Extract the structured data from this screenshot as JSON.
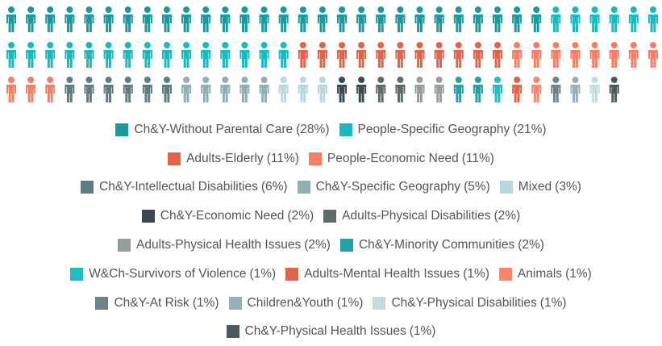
{
  "chart_data": {
    "type": "pictogram",
    "categories": [
      "Ch&Y-Without Parental Care",
      "People-Specific Geography",
      "Adults-Elderly",
      "People-Economic Need",
      "Ch&Y-Intellectual Disabilities",
      "Ch&Y-Specific Geography",
      "Mixed",
      "Ch&Y-Economic Need",
      "Adults-Physical Disabilities",
      "Adults-Physical Health Issues",
      "Ch&Y-Minority Communities",
      "W&Ch-Survivors of Violence",
      "Adults-Mental Health Issues",
      "Animals",
      "Ch&Y-At Risk",
      "Children&Youth",
      "Ch&Y-Physical Disabilities",
      "Ch&Y-Physical Health Issues"
    ],
    "values": [
      28,
      21,
      11,
      11,
      6,
      5,
      3,
      2,
      2,
      2,
      2,
      1,
      1,
      1,
      1,
      1,
      1,
      1
    ],
    "value_labels": [
      "(28%)",
      "(21%)",
      "(11%)",
      "(11%)",
      "(6%)",
      "(5%)",
      "(3%)",
      "(2%)",
      "(2%)",
      "(2%)",
      "(2%)",
      "(1%)",
      "(1%)",
      "(1%)",
      "(1%)",
      "(1%)",
      "(1%)",
      "(1%)"
    ],
    "colors": [
      "#1a9a9e",
      "#1bb8c0",
      "#e0644a",
      "#f47f66",
      "#5f7c82",
      "#93aeb3",
      "#bcd6dd",
      "#3a4a50",
      "#5d6b6c",
      "#959d9e",
      "#25a0a6",
      "#21bcc4",
      "#e0644a",
      "#f5876c",
      "#6b8489",
      "#98b0b5",
      "#c3dbe1",
      "#4d5a5d"
    ]
  }
}
